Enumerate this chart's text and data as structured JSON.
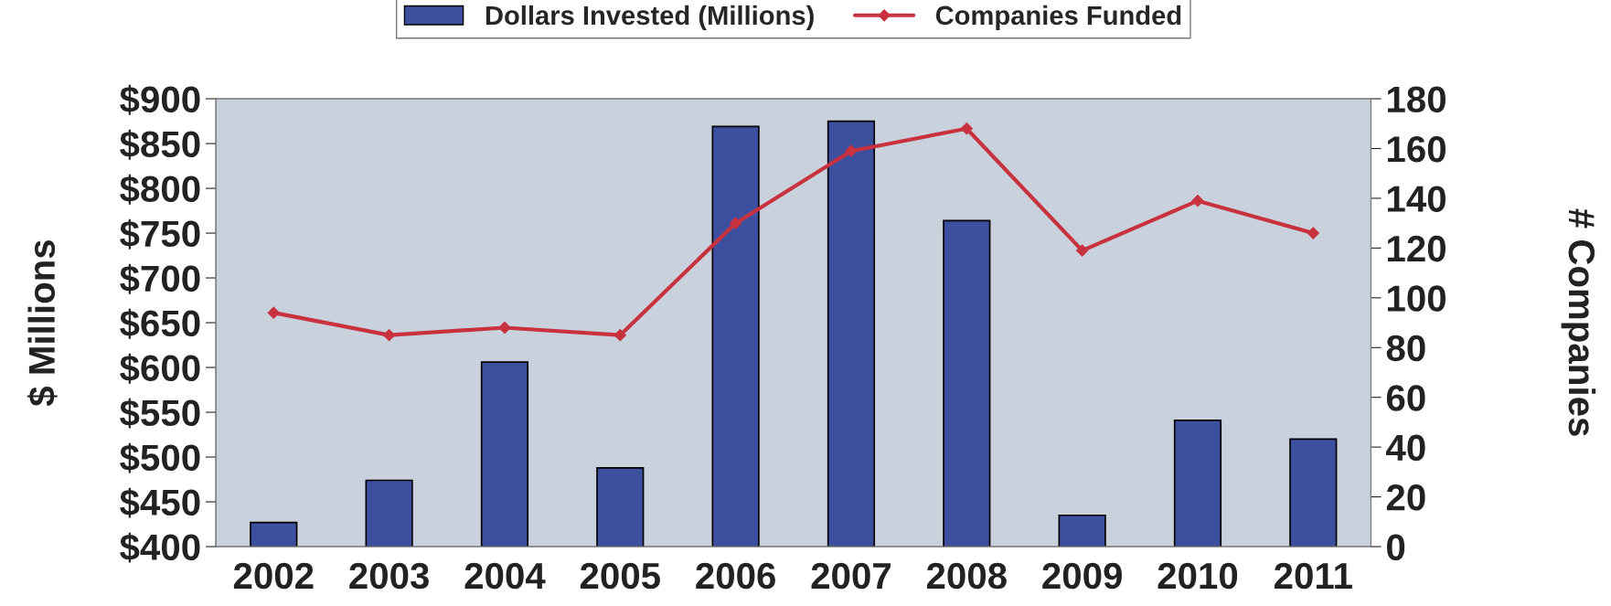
{
  "chart_data": {
    "type": "bar",
    "categories": [
      "2002",
      "2003",
      "2004",
      "2005",
      "2006",
      "2007",
      "2008",
      "2009",
      "2010",
      "2011"
    ],
    "series": [
      {
        "name": "Dollars Invested (Millions)",
        "color": "#3d4f9f",
        "values": [
          427,
          474,
          606,
          488,
          869,
          875,
          764,
          435,
          541,
          520
        ]
      },
      {
        "name": "Companies Funded",
        "type": "line",
        "axis": "y2",
        "color": "#c8323f",
        "marker": "diamond",
        "values": [
          94,
          85,
          88,
          85,
          130,
          159,
          168,
          119,
          139,
          126
        ]
      }
    ],
    "ylabel": "$ Millions",
    "y2label": "# Companies",
    "ylim": [
      400,
      900
    ],
    "yticks": [
      {
        "value": 400,
        "label": "$400"
      },
      {
        "value": 450,
        "label": "$450"
      },
      {
        "value": 500,
        "label": "$500"
      },
      {
        "value": 550,
        "label": "$550"
      },
      {
        "value": 600,
        "label": "$600"
      },
      {
        "value": 650,
        "label": "$650"
      },
      {
        "value": 700,
        "label": "$700"
      },
      {
        "value": 750,
        "label": "$750"
      },
      {
        "value": 800,
        "label": "$800"
      },
      {
        "value": 850,
        "label": "$850"
      },
      {
        "value": 900,
        "label": "$900"
      }
    ],
    "y2lim": [
      0,
      180
    ],
    "y2ticks": [
      0,
      20,
      40,
      60,
      80,
      100,
      120,
      140,
      160,
      180
    ],
    "grid": false,
    "legend": "top"
  }
}
